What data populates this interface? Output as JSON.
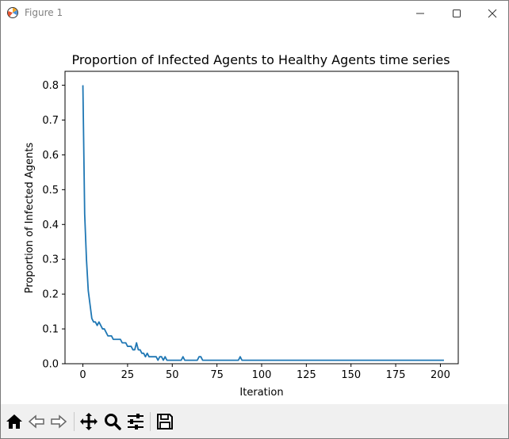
{
  "window": {
    "title": "Figure 1"
  },
  "toolbar": {
    "buttons": [
      "home-icon",
      "back-arrow-icon",
      "forward-arrow-icon",
      "pan-icon",
      "zoom-icon",
      "configure-subplots-icon",
      "save-icon"
    ]
  },
  "chart_data": {
    "type": "line",
    "title": "Proportion of Infected Agents to Healthy Agents time series",
    "xlabel": "Iteration",
    "ylabel": "Proportion of Infected Agents",
    "xlim": [
      -10,
      210
    ],
    "ylim": [
      0,
      0.84
    ],
    "xticks": [
      0,
      25,
      50,
      75,
      100,
      125,
      150,
      175,
      200
    ],
    "yticks": [
      0.0,
      0.1,
      0.2,
      0.3,
      0.4,
      0.5,
      0.6,
      0.7,
      0.8
    ],
    "ytick_labels": [
      "0.0",
      "0.1",
      "0.2",
      "0.3",
      "0.4",
      "0.5",
      "0.6",
      "0.7",
      "0.8"
    ],
    "grid": false,
    "series_color": "#1f77b4",
    "series": [
      {
        "values": [
          0.8,
          0.43,
          0.3,
          0.21,
          0.17,
          0.13,
          0.12,
          0.12,
          0.11,
          0.12,
          0.11,
          0.1,
          0.1,
          0.09,
          0.08,
          0.08,
          0.08,
          0.07,
          0.07,
          0.07,
          0.07,
          0.07,
          0.06,
          0.06,
          0.06,
          0.05,
          0.05,
          0.05,
          0.04,
          0.04,
          0.06,
          0.04,
          0.04,
          0.03,
          0.03,
          0.02,
          0.03,
          0.02,
          0.02,
          0.02,
          0.02,
          0.02,
          0.01,
          0.02,
          0.02,
          0.01,
          0.02,
          0.01,
          0.01,
          0.01,
          0.01,
          0.01,
          0.01,
          0.01,
          0.01,
          0.01,
          0.02,
          0.01,
          0.01,
          0.01,
          0.01,
          0.01,
          0.01,
          0.01,
          0.01,
          0.02,
          0.02,
          0.01,
          0.01,
          0.01,
          0.01,
          0.01,
          0.01,
          0.01,
          0.01,
          0.01,
          0.01,
          0.01,
          0.01,
          0.01,
          0.01,
          0.01,
          0.01,
          0.01,
          0.01,
          0.01,
          0.01,
          0.01,
          0.02,
          0.01,
          0.01,
          0.01,
          0.01,
          0.01,
          0.01,
          0.01,
          0.01,
          0.01,
          0.01,
          0.01,
          0.01,
          0.01,
          0.01,
          0.01,
          0.01,
          0.01,
          0.01,
          0.01,
          0.01,
          0.01,
          0.01,
          0.01,
          0.01,
          0.01,
          0.01,
          0.01,
          0.01,
          0.01,
          0.01,
          0.01,
          0.01,
          0.01,
          0.01,
          0.01,
          0.01,
          0.01,
          0.01,
          0.01,
          0.01,
          0.01,
          0.01,
          0.01,
          0.01,
          0.01,
          0.01,
          0.01,
          0.01,
          0.01,
          0.01,
          0.01,
          0.01,
          0.01,
          0.01,
          0.01,
          0.01,
          0.01,
          0.01,
          0.01,
          0.01,
          0.01,
          0.01,
          0.01,
          0.01,
          0.01,
          0.01,
          0.01,
          0.01,
          0.01,
          0.01,
          0.01,
          0.01,
          0.01,
          0.01,
          0.01,
          0.01,
          0.01,
          0.01,
          0.01,
          0.01,
          0.01,
          0.01,
          0.01,
          0.01,
          0.01,
          0.01,
          0.01,
          0.01,
          0.01,
          0.01,
          0.01,
          0.01,
          0.01,
          0.01,
          0.01,
          0.01,
          0.01,
          0.01,
          0.01,
          0.01,
          0.01,
          0.01,
          0.01,
          0.01,
          0.01,
          0.01,
          0.01,
          0.01,
          0.01,
          0.01,
          0.01,
          0.01,
          0.01,
          0.01
        ]
      }
    ]
  }
}
